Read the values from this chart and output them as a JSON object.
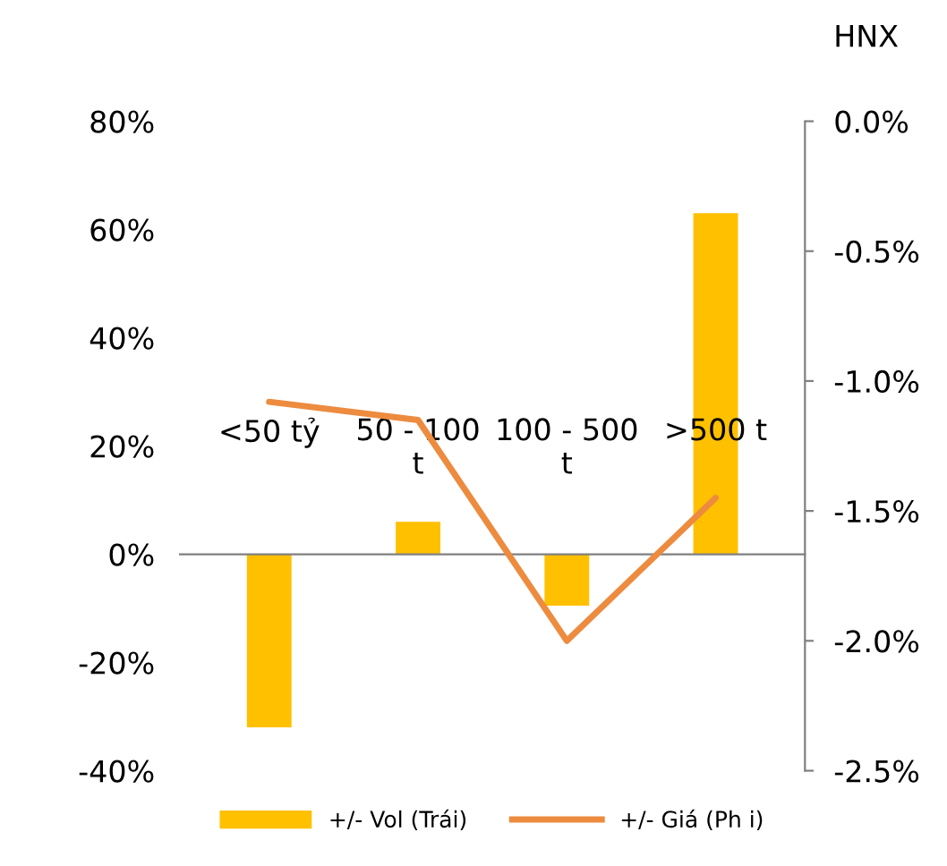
{
  "chart_data": {
    "type": "bar",
    "title": "HNX",
    "categories": [
      "<50 tỷ",
      "50 - 100\nt",
      "100 - 500\nt",
      ">500 t"
    ],
    "series": [
      {
        "name": "+/- Vol (Trái)",
        "color": "#ffc000",
        "values": [
          -32,
          6,
          -9.5,
          63
        ]
      },
      {
        "name": "+/- Giá (Ph i)",
        "type": "line",
        "axis": "y2",
        "color": "#ed8b3f",
        "values": [
          -1.08,
          -1.15,
          -2.0,
          -1.45
        ]
      }
    ],
    "ylim": [
      -40,
      80
    ],
    "yticks": [
      {
        "value": -40,
        "label": "-40%"
      },
      {
        "value": -20,
        "label": "-20%"
      },
      {
        "value": 0,
        "label": "0%"
      },
      {
        "value": 20,
        "label": "20%"
      },
      {
        "value": 40,
        "label": "40%"
      },
      {
        "value": 60,
        "label": "60%"
      },
      {
        "value": 80,
        "label": "80%"
      }
    ],
    "y2lim": [
      -2.5,
      0
    ],
    "y2ticks": [
      {
        "value": -2.5,
        "label": "-2.5%"
      },
      {
        "value": -2.0,
        "label": "-2.0%"
      },
      {
        "value": -1.5,
        "label": "-1.5%"
      },
      {
        "value": -1.0,
        "label": "-1.0%"
      },
      {
        "value": -0.5,
        "label": "-0.5%"
      },
      {
        "value": 0,
        "label": "0.0%"
      }
    ],
    "legend": "bottom",
    "marker": "none",
    "line_style": "solid"
  }
}
